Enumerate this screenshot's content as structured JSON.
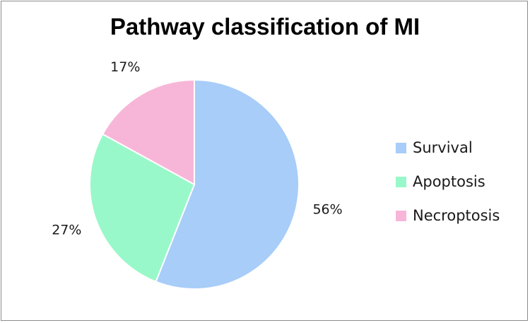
{
  "chart_data": {
    "type": "pie",
    "title": "Pathway classification of MI",
    "categories": [
      "Survival",
      "Apoptosis",
      "Necroptosis"
    ],
    "values": [
      56,
      27,
      17
    ],
    "labels": [
      "56%",
      "27%",
      "17%"
    ],
    "colors": [
      "#a7cdf8",
      "#99f8c9",
      "#f7b6d8"
    ],
    "legend_position": "right"
  }
}
